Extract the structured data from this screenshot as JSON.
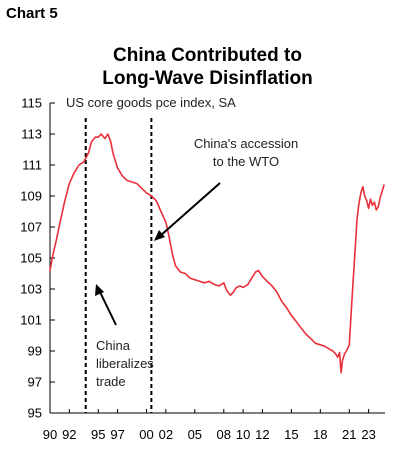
{
  "chart_label": "Chart 5",
  "chart_data": {
    "type": "line",
    "title_lines": [
      "China Contributed to",
      "Long-Wave Disinflation"
    ],
    "ylabel": "US core goods pce index, SA",
    "xlabel": "",
    "ylim": [
      95,
      115
    ],
    "yticks": [
      95,
      97,
      99,
      101,
      103,
      105,
      107,
      109,
      111,
      113,
      115
    ],
    "xlim": [
      1990,
      2024.7
    ],
    "xticks": [
      {
        "value": 1990,
        "label": "90"
      },
      {
        "value": 1992,
        "label": "92"
      },
      {
        "value": 1995,
        "label": "95"
      },
      {
        "value": 1997,
        "label": "97"
      },
      {
        "value": 2000,
        "label": "00"
      },
      {
        "value": 2002,
        "label": "02"
      },
      {
        "value": 2005,
        "label": "05"
      },
      {
        "value": 2008,
        "label": "08"
      },
      {
        "value": 2010,
        "label": "10"
      },
      {
        "value": 2012,
        "label": "12"
      },
      {
        "value": 2015,
        "label": "15"
      },
      {
        "value": 2018,
        "label": "18"
      },
      {
        "value": 2021,
        "label": "21"
      },
      {
        "value": 2023,
        "label": "23"
      }
    ],
    "grid": false,
    "color": "#e8303a",
    "series": [
      {
        "x": [
          1990,
          1990.3,
          1990.6,
          1991,
          1991.5,
          1992,
          1992.5,
          1993,
          1993.5,
          1994,
          1994.3,
          1994.7,
          1995,
          1995.3,
          1995.7,
          1996,
          1996.3,
          1996.5,
          1997,
          1997.5,
          1998,
          1998.5,
          1999,
          1999.5,
          2000,
          2000.5,
          2001,
          2001.5,
          2002,
          2002.3,
          2002.7,
          2003,
          2003.5,
          2004,
          2004.5,
          2005,
          2005.5,
          2006,
          2006.5,
          2007,
          2007.5,
          2008,
          2008.3,
          2008.7,
          2009,
          2009.3,
          2009.7,
          2010,
          2010.5,
          2011,
          2011.3,
          2011.6,
          2012,
          2012.5,
          2013,
          2013.5,
          2014,
          2014.5,
          2015,
          2015.5,
          2016,
          2016.5,
          2017,
          2017.5,
          2018,
          2018.5,
          2019,
          2019.3,
          2019.6,
          2019.8,
          2020,
          2020.15,
          2020.3,
          2020.5,
          2020.7,
          2021,
          2021.2,
          2021.4,
          2021.6,
          2021.8,
          2022,
          2022.2,
          2022.4,
          2022.6,
          2022.8,
          2023,
          2023.2,
          2023.4,
          2023.6,
          2023.8,
          2024,
          2024.2,
          2024.4,
          2024.6
        ],
        "y": [
          104.2,
          105.2,
          106.0,
          107.2,
          108.6,
          109.8,
          110.5,
          111.0,
          111.2,
          111.8,
          112.5,
          112.8,
          112.8,
          113.0,
          112.7,
          113.0,
          112.5,
          111.8,
          110.8,
          110.3,
          110.0,
          109.9,
          109.8,
          109.5,
          109.2,
          109.0,
          108.7,
          108.0,
          107.3,
          106.5,
          105.2,
          104.5,
          104.1,
          104.0,
          103.7,
          103.6,
          103.5,
          103.4,
          103.5,
          103.3,
          103.2,
          103.4,
          102.9,
          102.6,
          102.8,
          103.1,
          103.2,
          103.1,
          103.3,
          103.8,
          104.1,
          104.2,
          103.8,
          103.5,
          103.2,
          102.8,
          102.2,
          101.8,
          101.3,
          100.9,
          100.5,
          100.1,
          99.8,
          99.5,
          99.4,
          99.3,
          99.1,
          99.0,
          98.8,
          98.6,
          98.9,
          97.6,
          98.4,
          98.8,
          99.0,
          99.4,
          101.5,
          103.5,
          105.5,
          107.5,
          108.5,
          109.2,
          109.6,
          109.0,
          108.7,
          108.2,
          108.8,
          108.4,
          108.6,
          108.1,
          108.3,
          108.9,
          109.3,
          109.7
        ]
      }
    ],
    "vlines": [
      1993.7,
      2000.5
    ],
    "annotations": [
      {
        "text_lines": [
          "China's accession",
          "to the WTO"
        ]
      },
      {
        "text_lines": [
          "China",
          "liberalizes",
          "trade"
        ]
      }
    ]
  }
}
